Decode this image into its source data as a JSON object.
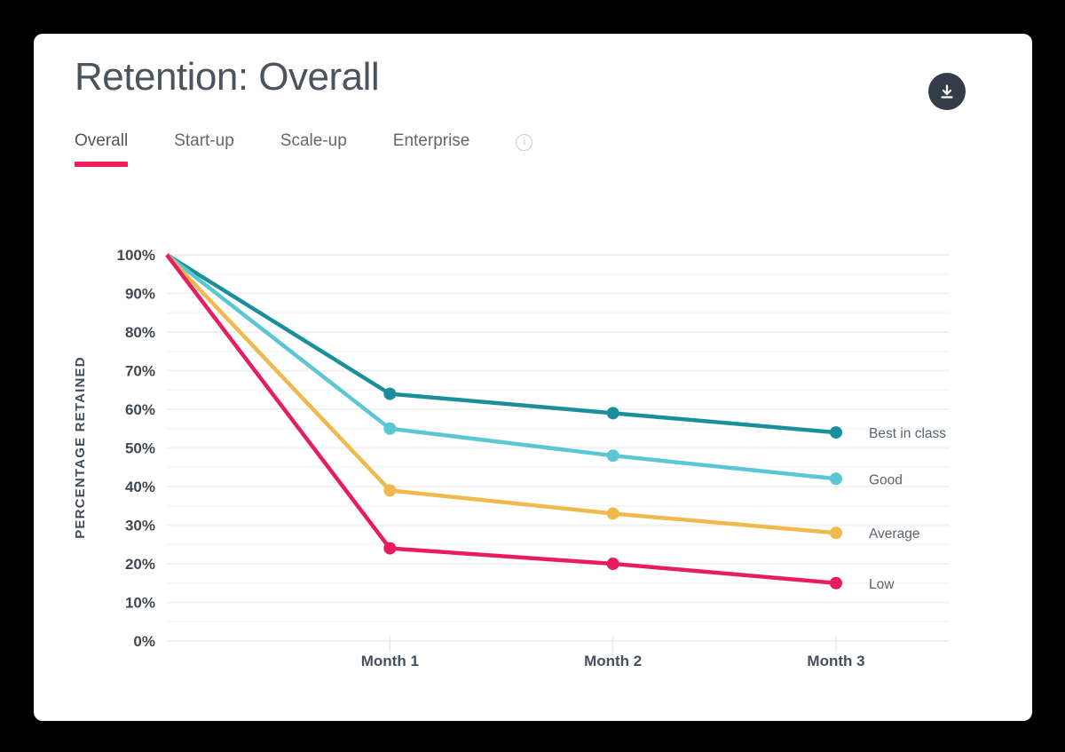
{
  "header": {
    "title": "Retention: Overall"
  },
  "toolbar": {
    "download_button": "download"
  },
  "tabs": {
    "active_underline_color": "#ee1e5d",
    "items": [
      {
        "label": "Overall",
        "active": true
      },
      {
        "label": "Start-up",
        "active": false
      },
      {
        "label": "Scale-up",
        "active": false
      },
      {
        "label": "Enterprise",
        "active": false
      }
    ],
    "info_glyph": "i"
  },
  "chart_data": {
    "type": "line",
    "title": "Retention: Overall",
    "ylabel": "PERCENTAGE RETAINED",
    "ylim": [
      0,
      100
    ],
    "grid": "horizontal, every 5%",
    "legend_position": "right of last data point",
    "x_labels": [
      "Month 1",
      "Month 2",
      "Month 3"
    ],
    "y_ticks": [
      {
        "label": "100%",
        "value": 100
      },
      {
        "label": "90%",
        "value": 90
      },
      {
        "label": "80%",
        "value": 80
      },
      {
        "label": "70%",
        "value": 70
      },
      {
        "label": "60%",
        "value": 60
      },
      {
        "label": "50%",
        "value": 50
      },
      {
        "label": "40%",
        "value": 40
      },
      {
        "label": "30%",
        "value": 30
      },
      {
        "label": "20%",
        "value": 20
      },
      {
        "label": "10%",
        "value": 10
      },
      {
        "label": "0%",
        "value": 0
      }
    ],
    "series": [
      {
        "name": "Best in class",
        "color": "#1a8f9c",
        "values": [
          100,
          64,
          59,
          54
        ]
      },
      {
        "name": "Good",
        "color": "#5bc6d4",
        "values": [
          100,
          55,
          48,
          42
        ]
      },
      {
        "name": "Average",
        "color": "#f0b94b",
        "values": [
          100,
          39,
          33,
          28
        ]
      },
      {
        "name": "Low",
        "color": "#e81d61",
        "values": [
          100,
          24,
          20,
          15
        ]
      }
    ]
  }
}
